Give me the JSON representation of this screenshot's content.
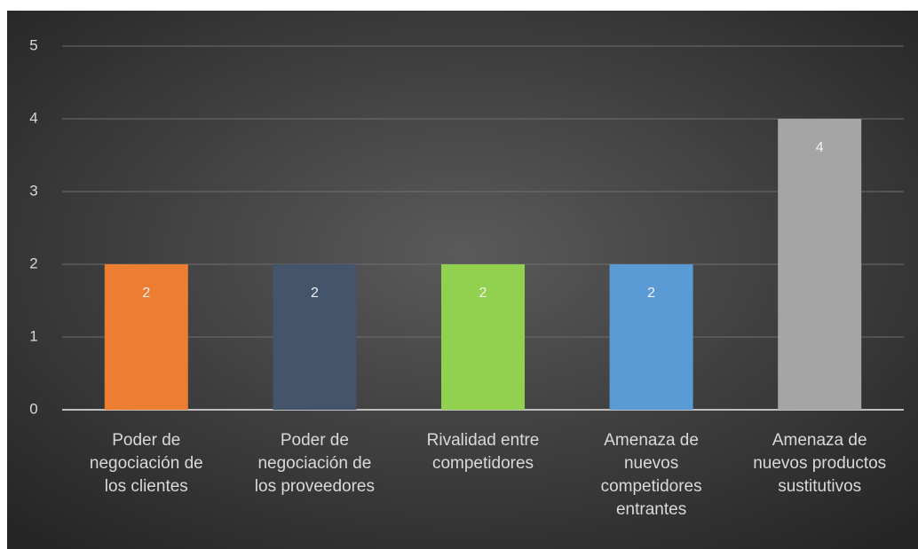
{
  "chart_data": {
    "type": "bar",
    "categories": [
      "Poder de negociación de los clientes",
      "Poder de negociación de los proveedores",
      "Rivalidad entre competidores",
      "Amenaza de nuevos competidores entrantes",
      "Amenaza de nuevos productos sustitutivos"
    ],
    "values": [
      2,
      2,
      2,
      2,
      4
    ],
    "colors": [
      "#ed7d31",
      "#44546a",
      "#92d050",
      "#5b9bd5",
      "#a5a5a5"
    ],
    "ylim": [
      0,
      5
    ],
    "yticks": [
      0,
      1,
      2,
      3,
      4,
      5
    ],
    "grid": true
  }
}
